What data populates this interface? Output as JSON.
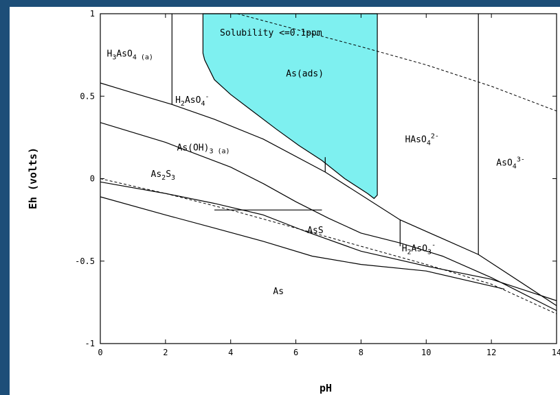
{
  "chart_data": {
    "type": "line",
    "xlabel": "pH",
    "ylabel": "Eh (volts)",
    "xlim": [
      0,
      14
    ],
    "ylim": [
      -1,
      1
    ],
    "x_ticks": [
      "0",
      "2",
      "4",
      "6",
      "8",
      "10",
      "12",
      "14"
    ],
    "y_ticks": [
      "1",
      "0.5",
      "0",
      "-0.5",
      "-1"
    ],
    "solubility_annotation": "Solubility <=0.1ppm",
    "regions": [
      {
        "name": "H3AsO4(a)",
        "parts": [
          [
            "H",
            ""
          ],
          [
            "3",
            "sub"
          ],
          [
            "AsO",
            ""
          ],
          [
            "4 (a)",
            "sub"
          ]
        ],
        "pos": [
          0.2,
          0.74
        ]
      },
      {
        "name": "H2AsO4-",
        "parts": [
          [
            "H",
            ""
          ],
          [
            "2",
            "sub"
          ],
          [
            "AsO",
            ""
          ],
          [
            "4",
            "sub"
          ],
          [
            "-",
            "sup"
          ]
        ],
        "pos": [
          2.3,
          0.46
        ]
      },
      {
        "name": "As(ads)",
        "parts": [
          [
            "As(ads)",
            ""
          ]
        ],
        "pos": [
          5.7,
          0.62
        ]
      },
      {
        "name": "As(OH)3(a)",
        "parts": [
          [
            "As(OH)",
            ""
          ],
          [
            "3 (a)",
            "sub"
          ]
        ],
        "pos": [
          2.35,
          0.17
        ]
      },
      {
        "name": "HAsO42-",
        "parts": [
          [
            "HAsO",
            ""
          ],
          [
            "4",
            "sub"
          ],
          [
            "2-",
            "sup"
          ]
        ],
        "pos": [
          9.35,
          0.22
        ]
      },
      {
        "name": "AsO43-",
        "parts": [
          [
            "AsO",
            ""
          ],
          [
            "4",
            "sub"
          ],
          [
            "3-",
            "sup"
          ]
        ],
        "pos": [
          12.15,
          0.08
        ]
      },
      {
        "name": "As2S3",
        "parts": [
          [
            "As",
            ""
          ],
          [
            "2",
            "sub"
          ],
          [
            "S",
            ""
          ],
          [
            "3",
            "sub"
          ]
        ],
        "pos": [
          1.55,
          0.01
        ]
      },
      {
        "name": "AsS",
        "parts": [
          [
            "AsS",
            ""
          ]
        ],
        "pos": [
          6.35,
          -0.33
        ]
      },
      {
        "name": "H2AsO3-",
        "parts": [
          [
            "H",
            ""
          ],
          [
            "2",
            "sub"
          ],
          [
            "AsO",
            ""
          ],
          [
            "3",
            "sub"
          ],
          [
            "-",
            "sup"
          ]
        ],
        "pos": [
          9.25,
          -0.44
        ]
      },
      {
        "name": "As",
        "parts": [
          [
            "As",
            ""
          ]
        ],
        "pos": [
          5.3,
          -0.7
        ]
      }
    ],
    "boundaries": [
      [
        [
          0,
          0.58
        ],
        [
          1,
          0.52
        ],
        [
          2.2,
          0.45
        ],
        [
          3.5,
          0.36
        ],
        [
          5,
          0.24
        ],
        [
          6.9,
          0.04
        ],
        [
          9.2,
          -0.25
        ],
        [
          11.6,
          -0.46
        ],
        [
          14,
          -0.77
        ]
      ],
      [
        [
          0,
          0.34
        ],
        [
          2,
          0.22
        ],
        [
          4,
          0.07
        ],
        [
          5,
          -0.03
        ],
        [
          6,
          -0.14
        ],
        [
          7,
          -0.24
        ],
        [
          8,
          -0.33
        ],
        [
          9.2,
          -0.39
        ],
        [
          10.5,
          -0.47
        ],
        [
          12,
          -0.6
        ],
        [
          14,
          -0.8
        ]
      ],
      [
        [
          0,
          -0.02
        ],
        [
          2,
          -0.09
        ],
        [
          3.5,
          -0.15
        ],
        [
          5,
          -0.22
        ],
        [
          6.3,
          -0.32
        ],
        [
          8,
          -0.44
        ],
        [
          10,
          -0.53
        ],
        [
          12,
          -0.61
        ],
        [
          14,
          -0.74
        ]
      ],
      [
        [
          0,
          -0.11
        ],
        [
          2,
          -0.22
        ],
        [
          3.5,
          -0.3
        ],
        [
          5,
          -0.38
        ],
        [
          6.5,
          -0.47
        ],
        [
          8,
          -0.52
        ],
        [
          10,
          -0.56
        ],
        [
          12.4,
          -0.67
        ]
      ],
      [
        [
          2.2,
          1
        ],
        [
          2.2,
          0.45
        ]
      ],
      [
        [
          6.9,
          0.04
        ],
        [
          6.9,
          0.13
        ]
      ],
      [
        [
          9.2,
          -0.25
        ],
        [
          9.2,
          -0.41
        ]
      ],
      [
        [
          11.6,
          1
        ],
        [
          11.6,
          -0.46
        ]
      ],
      [
        [
          3.5,
          -0.19
        ],
        [
          6.8,
          -0.19
        ]
      ]
    ],
    "water_limits": [
      [
        [
          4.2,
          1
        ],
        [
          8,
          0.8
        ],
        [
          10,
          0.69
        ],
        [
          12,
          0.56
        ],
        [
          14,
          0.41
        ]
      ],
      [
        [
          0,
          0
        ],
        [
          2,
          -0.09
        ],
        [
          4,
          -0.19
        ],
        [
          6,
          -0.3
        ],
        [
          8,
          -0.41
        ],
        [
          10,
          -0.52
        ],
        [
          12,
          -0.64
        ],
        [
          14,
          -0.82
        ]
      ]
    ],
    "adsorption_area": [
      [
        3.15,
        1
      ],
      [
        8.5,
        1
      ],
      [
        8.5,
        -0.1
      ],
      [
        8.4,
        -0.12
      ],
      [
        8.2,
        -0.09
      ],
      [
        7.5,
        0.0
      ],
      [
        6.8,
        0.11
      ],
      [
        6.1,
        0.2
      ],
      [
        5.4,
        0.3
      ],
      [
        4.6,
        0.42
      ],
      [
        4.0,
        0.51
      ],
      [
        3.5,
        0.6
      ],
      [
        3.2,
        0.72
      ],
      [
        3.15,
        0.76
      ]
    ],
    "colors": {
      "adsorption": "#7ef0f0",
      "frame": "#1d4e78",
      "lines": "#000000"
    },
    "grid": false,
    "legend": "none"
  }
}
